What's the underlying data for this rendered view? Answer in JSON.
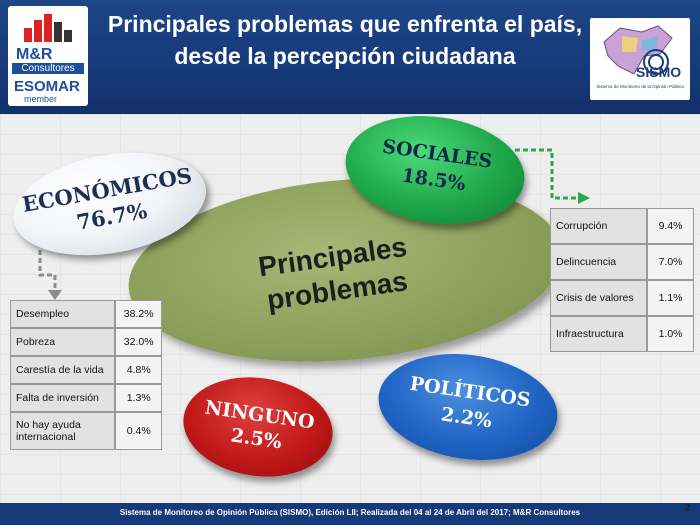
{
  "header": {
    "title": "Principales problemas que enfrenta el país, desde la percepción ciudadana",
    "logo_left": {
      "line1": "M&R",
      "line2": "Consultores",
      "line3": "ESOMAR",
      "line4": "member"
    },
    "logo_right": {
      "brand": "SISMO",
      "caption": "Sistema de Monitoreo de la Opinión Pública"
    }
  },
  "center_label": "Principales problemas",
  "bubbles": {
    "economicos": {
      "name": "ECONÓMICOS",
      "pct": "76.7%"
    },
    "sociales": {
      "name": "SOCIALES",
      "pct": "18.5%"
    },
    "ninguno": {
      "name": "NINGUNO",
      "pct": "2.5%"
    },
    "politicos": {
      "name": "POLÍTICOS",
      "pct": "2.2%"
    }
  },
  "economicos_table": [
    {
      "label": "Desempleo",
      "value": "38.2%"
    },
    {
      "label": "Pobreza",
      "value": "32.0%"
    },
    {
      "label": "Carestía de la vida",
      "value": "4.8%"
    },
    {
      "label": "Falta de inversión",
      "value": "1.3%"
    },
    {
      "label": "No hay ayuda internacional",
      "value": "0.4%"
    }
  ],
  "sociales_table": [
    {
      "label": "Corrupción",
      "value": "9.4%"
    },
    {
      "label": "Delincuencia",
      "value": "7.0%"
    },
    {
      "label": "Crisis de valores",
      "value": "1.1%"
    },
    {
      "label": "Infraestructura",
      "value": "1.0%"
    }
  ],
  "footer": "Sistema de Monitoreo de Opinión Pública (SISMO), Edición LII; Realizada del 04 al 24 de Abril del 2017; M&R Consultores",
  "page_number": "2",
  "colors": {
    "header": "#1d4686",
    "main_ellipse": "#8ea05b",
    "economicos": "#f2f4f8",
    "sociales": "#1ea64a",
    "ninguno": "#c01818",
    "politicos": "#1f63c4"
  }
}
